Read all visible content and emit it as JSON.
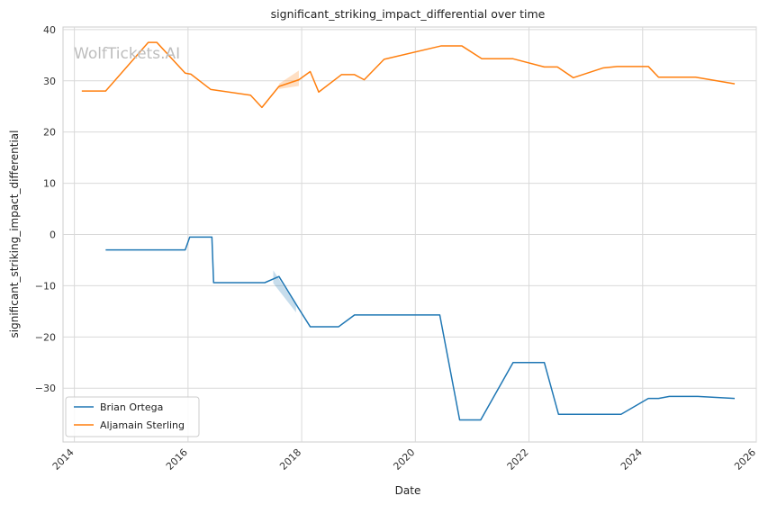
{
  "chart_data": {
    "type": "line",
    "title": "significant_striking_impact_differential over time",
    "xlabel": "Date",
    "ylabel": "significant_striking_impact_differential",
    "watermark": "WolfTickets.AI",
    "xlim": [
      2013.8,
      2026.0
    ],
    "ylim": [
      -40.5,
      40.5
    ],
    "x_ticks": [
      2014,
      2016,
      2018,
      2020,
      2022,
      2024,
      2026
    ],
    "y_ticks": [
      -30,
      -20,
      -10,
      0,
      10,
      20,
      30,
      40
    ],
    "x_tick_labels": [
      "2014",
      "2016",
      "2018",
      "2020",
      "2022",
      "2024",
      "2026"
    ],
    "y_tick_labels": [
      "−30",
      "−20",
      "−10",
      "0",
      "10",
      "20",
      "30",
      "40"
    ],
    "grid": true,
    "legend_position": "lower-left",
    "series": [
      {
        "name": "Brian Ortega",
        "color": "#1f77b4",
        "points": [
          [
            2014.55,
            -3.0
          ],
          [
            2015.95,
            -3.0
          ],
          [
            2016.03,
            -0.5
          ],
          [
            2016.42,
            -0.5
          ],
          [
            2016.45,
            -9.4
          ],
          [
            2017.35,
            -9.4
          ],
          [
            2017.6,
            -8.2
          ],
          [
            2017.95,
            -14.5
          ],
          [
            2018.15,
            -18.0
          ],
          [
            2018.65,
            -18.0
          ],
          [
            2018.93,
            -15.7
          ],
          [
            2020.43,
            -15.7
          ],
          [
            2020.78,
            -36.2
          ],
          [
            2021.15,
            -36.2
          ],
          [
            2021.72,
            -25.0
          ],
          [
            2022.27,
            -25.0
          ],
          [
            2022.52,
            -35.1
          ],
          [
            2023.62,
            -35.1
          ],
          [
            2024.1,
            -32.0
          ],
          [
            2024.28,
            -32.0
          ],
          [
            2024.47,
            -31.6
          ],
          [
            2024.97,
            -31.6
          ],
          [
            2025.62,
            -32.0
          ]
        ],
        "band": [
          [
            2017.5,
            -9.5,
            -7.0
          ],
          [
            2017.9,
            -15.2,
            -13.8
          ]
        ]
      },
      {
        "name": "Aljamain Sterling",
        "color": "#ff7f0e",
        "points": [
          [
            2014.13,
            28.0
          ],
          [
            2014.55,
            28.0
          ],
          [
            2015.3,
            37.5
          ],
          [
            2015.45,
            37.5
          ],
          [
            2015.95,
            31.5
          ],
          [
            2016.05,
            31.3
          ],
          [
            2016.4,
            28.3
          ],
          [
            2017.1,
            27.2
          ],
          [
            2017.3,
            24.8
          ],
          [
            2017.6,
            28.9
          ],
          [
            2017.95,
            30.2
          ],
          [
            2018.15,
            31.8
          ],
          [
            2018.3,
            27.8
          ],
          [
            2018.7,
            31.2
          ],
          [
            2018.93,
            31.2
          ],
          [
            2019.1,
            30.2
          ],
          [
            2019.45,
            34.2
          ],
          [
            2020.45,
            36.8
          ],
          [
            2020.82,
            36.8
          ],
          [
            2021.17,
            34.3
          ],
          [
            2021.72,
            34.3
          ],
          [
            2022.27,
            32.7
          ],
          [
            2022.5,
            32.7
          ],
          [
            2022.78,
            30.6
          ],
          [
            2023.3,
            32.5
          ],
          [
            2023.55,
            32.8
          ],
          [
            2024.1,
            32.8
          ],
          [
            2024.28,
            30.7
          ],
          [
            2024.93,
            30.7
          ],
          [
            2025.62,
            29.4
          ]
        ],
        "band": [
          [
            2017.6,
            28.4,
            29.4
          ],
          [
            2017.95,
            29.0,
            32.0
          ]
        ]
      }
    ]
  }
}
